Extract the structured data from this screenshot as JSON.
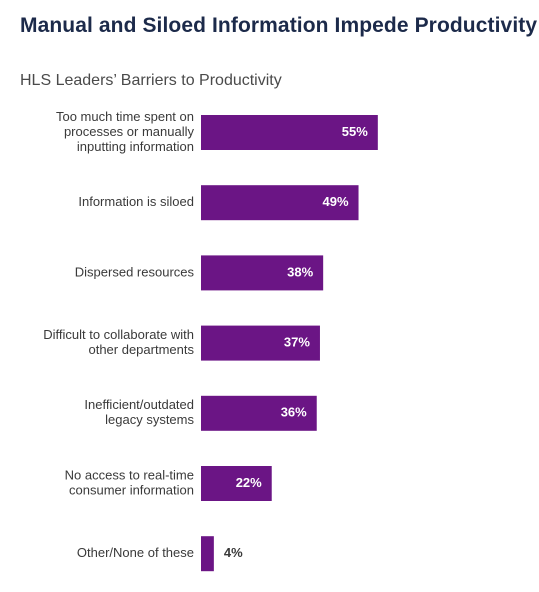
{
  "chart_data": {
    "type": "bar",
    "orientation": "horizontal",
    "title": "Manual and Siloed Information Impede Productivity",
    "subtitle": "HLS Leaders’ Barriers to Productivity",
    "categories": [
      [
        "Too much time spent on",
        "processes or manually",
        "inputting information"
      ],
      [
        "Information is siloed"
      ],
      [
        "Dispersed resources"
      ],
      [
        "Difficult to collaborate with",
        "other departments"
      ],
      [
        "Inefficient/outdated",
        "legacy systems"
      ],
      [
        "No access to real-time",
        "consumer information"
      ],
      [
        "Other/None of these"
      ]
    ],
    "values": [
      55,
      49,
      38,
      37,
      36,
      22,
      4
    ],
    "value_labels": [
      "55%",
      "49%",
      "38%",
      "37%",
      "36%",
      "22%",
      "4%"
    ],
    "unit": "%",
    "xlim": [
      0,
      100
    ],
    "grid": false,
    "legend": "none",
    "colors": {
      "bar": "#6b1585",
      "value_inside": "#ffffff",
      "value_outside": "#3a3a3a"
    }
  }
}
